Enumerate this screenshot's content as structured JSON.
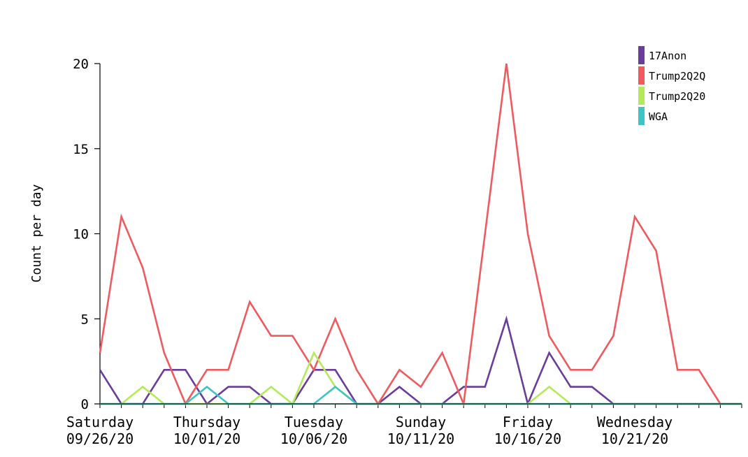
{
  "chart_data": {
    "type": "line",
    "ylabel": "Count per day",
    "ylim": [
      0,
      20
    ],
    "y_ticks": [
      0,
      5,
      10,
      15,
      20
    ],
    "x": [
      "09/26/20",
      "09/27/20",
      "09/28/20",
      "09/29/20",
      "09/30/20",
      "10/01/20",
      "10/02/20",
      "10/03/20",
      "10/04/20",
      "10/05/20",
      "10/06/20",
      "10/07/20",
      "10/08/20",
      "10/09/20",
      "10/10/20",
      "10/11/20",
      "10/12/20",
      "10/13/20",
      "10/14/20",
      "10/15/20",
      "10/16/20",
      "10/17/20",
      "10/18/20",
      "10/19/20",
      "10/20/20",
      "10/21/20",
      "10/22/20",
      "10/23/20",
      "10/24/20",
      "10/25/20",
      "10/26/20"
    ],
    "x_ticks": [
      {
        "day": "Saturday",
        "date": "09/26/20",
        "index": 0
      },
      {
        "day": "Thursday",
        "date": "10/01/20",
        "index": 5
      },
      {
        "day": "Tuesday",
        "date": "10/06/20",
        "index": 10
      },
      {
        "day": "Sunday",
        "date": "10/11/20",
        "index": 15
      },
      {
        "day": "Friday",
        "date": "10/16/20",
        "index": 20
      },
      {
        "day": "Wednesday",
        "date": "10/21/20",
        "index": 25
      }
    ],
    "legend_position": "top-right",
    "series": [
      {
        "name": "17Anon",
        "color": "#6a3d9a",
        "values": [
          2,
          0,
          0,
          2,
          2,
          0,
          1,
          1,
          0,
          0,
          2,
          2,
          0,
          0,
          1,
          0,
          0,
          1,
          1,
          5,
          0,
          3,
          1,
          1,
          0,
          0,
          0,
          0,
          0,
          0,
          0
        ]
      },
      {
        "name": "Trump2Q2Q",
        "color": "#f05a5f",
        "values": [
          3,
          11,
          8,
          3,
          0,
          2,
          2,
          6,
          4,
          4,
          2,
          5,
          2,
          0,
          2,
          1,
          3,
          0,
          10,
          20,
          10,
          4,
          2,
          2,
          4,
          11,
          9,
          2,
          2,
          0,
          0
        ]
      },
      {
        "name": "Trump2Q20",
        "color": "#b4ea5a",
        "values": [
          0,
          0,
          1,
          0,
          0,
          0,
          0,
          0,
          1,
          0,
          3,
          1,
          0,
          0,
          0,
          0,
          0,
          0,
          0,
          0,
          0,
          1,
          0,
          0,
          0,
          0,
          0,
          0,
          0,
          0,
          0
        ]
      },
      {
        "name": "WGA",
        "color": "#3fc4c4",
        "values": [
          0,
          0,
          0,
          0,
          0,
          1,
          0,
          0,
          0,
          0,
          0,
          1,
          0,
          0,
          0,
          0,
          0,
          0,
          0,
          0,
          0,
          0,
          0,
          0,
          0,
          0,
          0,
          0,
          0,
          0,
          0
        ]
      }
    ]
  }
}
